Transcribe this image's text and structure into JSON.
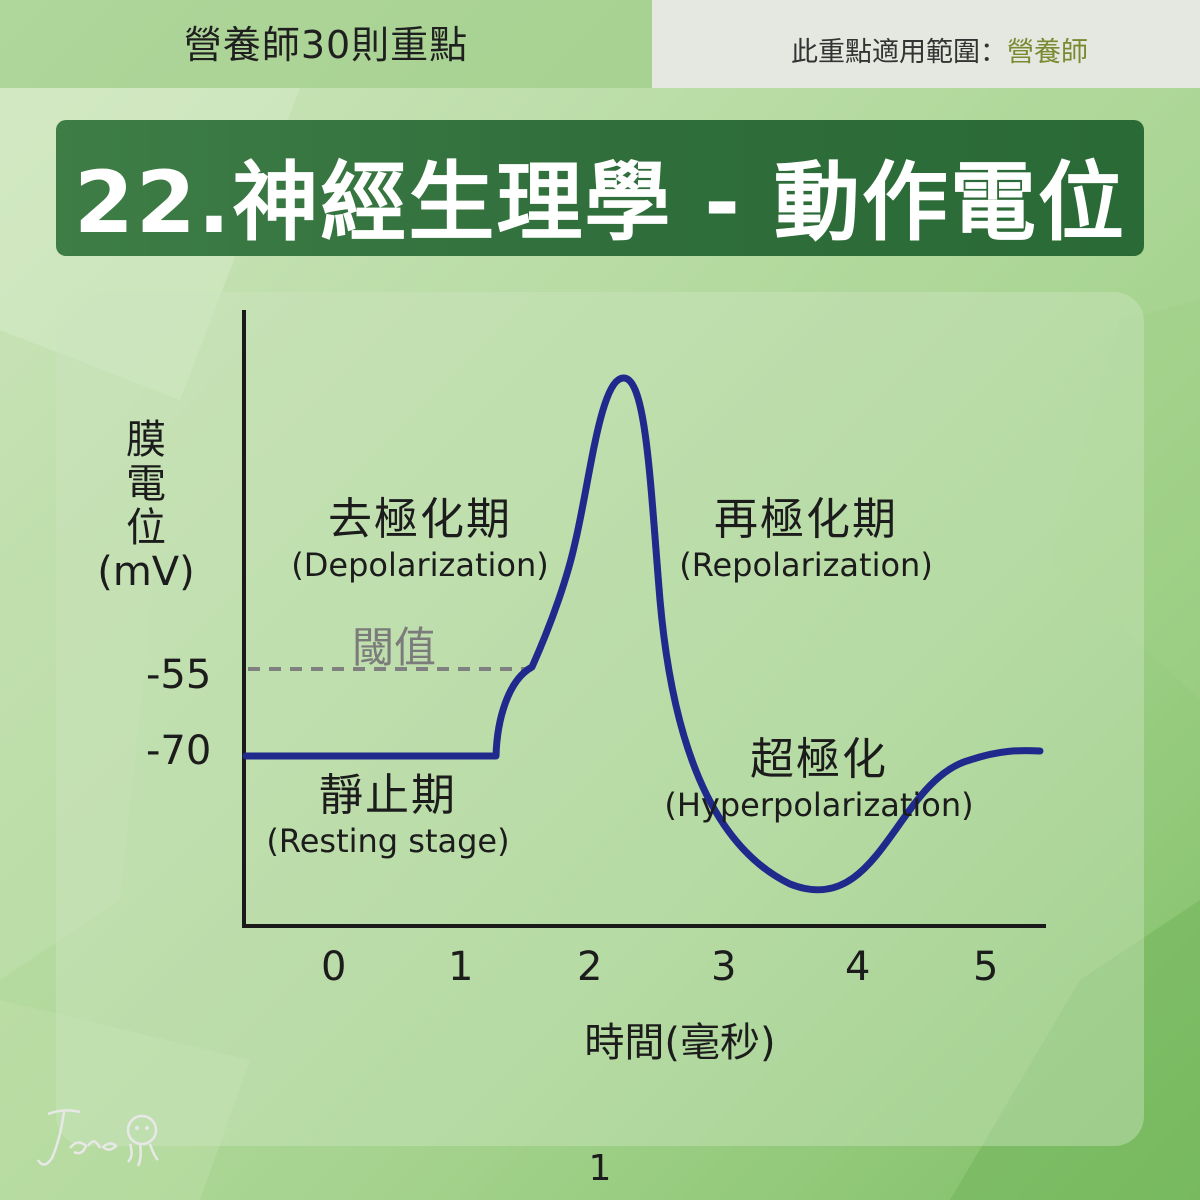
{
  "header": {
    "series_title": "營養師30則重點",
    "scope_label": "此重點適用範圍：",
    "scope_value": "營養師"
  },
  "title": "22.神經生理學 - 動作電位",
  "diagram": {
    "y_axis_label": {
      "line1": "膜",
      "line2": "電",
      "line3": "位",
      "line4": "(mV)"
    },
    "y_ticks": [
      "-55",
      "-70"
    ],
    "x_ticks": [
      "0",
      "1",
      "2",
      "3",
      "4",
      "5"
    ],
    "x_axis_label": "時間(毫秒)",
    "threshold_label": "閾值",
    "phases": {
      "resting": {
        "zh": "靜止期",
        "en": "(Resting stage)"
      },
      "depolarization": {
        "zh": "去極化期",
        "en": "(Depolarization)"
      },
      "repolarization": {
        "zh": "再極化期",
        "en": "(Repolarization)"
      },
      "hyperpolarization": {
        "zh": "超極化",
        "en": "(Hyperpolarization)"
      }
    },
    "curve_color": "#1f2a8c",
    "threshold_line_color": "#808080"
  },
  "page_number": "1",
  "signature_text": "Jane"
}
